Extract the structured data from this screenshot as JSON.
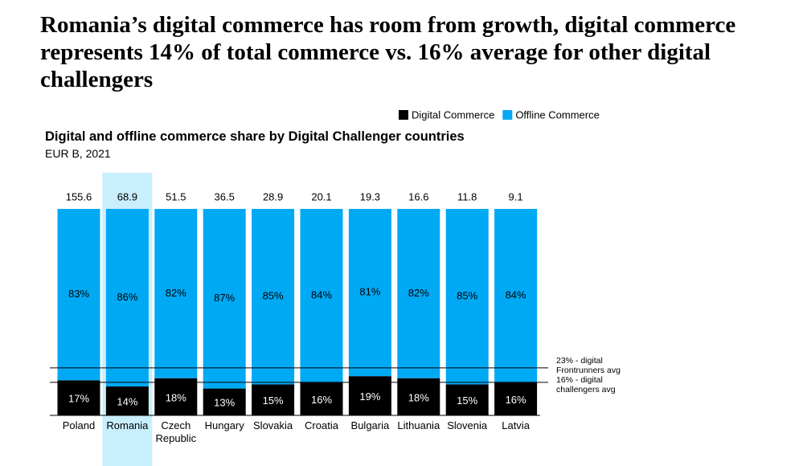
{
  "chart_data": {
    "type": "stacked_bar_100",
    "title": "Romania’s digital commerce has room from growth, digital commerce represents 14% of total commerce vs. 16% average for other digital challengers",
    "subtitle": "Digital and offline commerce share by Digital Challenger countries",
    "unit_note": "EUR B, 2021",
    "categories": [
      "Poland",
      "Romania",
      "Czech Republic",
      "Hungary",
      "Slovakia",
      "Croatia",
      "Bulgaria",
      "Lithuania",
      "Slovenia",
      "Latvia"
    ],
    "totals": [
      155.6,
      68.9,
      51.5,
      36.5,
      28.9,
      20.1,
      19.3,
      16.6,
      11.8,
      9.1
    ],
    "series": [
      {
        "name": "Digital Commerce",
        "color": "#000000",
        "label_color": "#ffffff",
        "values": [
          17,
          14,
          18,
          13,
          15,
          16,
          19,
          18,
          15,
          16
        ],
        "value_labels": [
          "17%",
          "14%",
          "18%",
          "13%",
          "15%",
          "16%",
          "19%",
          "18%",
          "15%",
          "16%"
        ]
      },
      {
        "name": "Offline Commerce",
        "color": "#00a9f4",
        "label_color": "#000000",
        "values": [
          83,
          86,
          82,
          87,
          85,
          84,
          81,
          82,
          85,
          84
        ],
        "value_labels": [
          "83%",
          "86%",
          "82%",
          "87%",
          "85%",
          "84%",
          "81%",
          "82%",
          "85%",
          "84%"
        ]
      }
    ],
    "reference_lines": [
      {
        "value": 23,
        "label": "23% - digital Frontrunners avg"
      },
      {
        "value": 16,
        "label": "16% - digital challengers avg"
      }
    ],
    "highlight": {
      "category_index": 1,
      "color": "#c9eefc"
    },
    "ylim": [
      0,
      100
    ],
    "legend": "top-right"
  }
}
